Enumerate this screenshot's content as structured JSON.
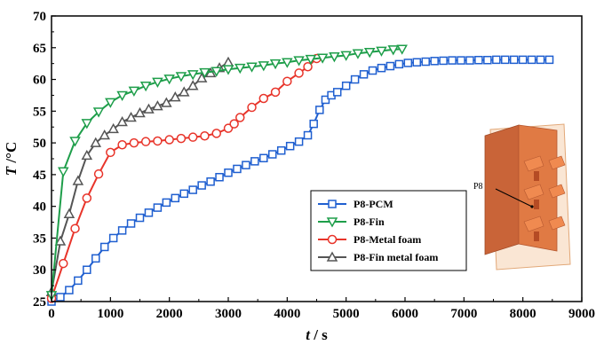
{
  "chart_data": {
    "type": "line",
    "xlabel": {
      "italic": "t",
      "unit": " / s"
    },
    "ylabel": {
      "italic": "T",
      "unit": " /°C"
    },
    "xlim": [
      0,
      9000
    ],
    "ylim": [
      25,
      70
    ],
    "xticks": [
      "0",
      "1000",
      "2000",
      "3000",
      "4000",
      "5000",
      "6000",
      "7000",
      "8000",
      "9000"
    ],
    "yticks": [
      "25",
      "30",
      "35",
      "40",
      "45",
      "50",
      "55",
      "60",
      "65",
      "70"
    ],
    "grid": false,
    "legend_position": "center-right",
    "inset": {
      "label": "P8"
    },
    "series": [
      {
        "name": "P8-PCM",
        "color": "#1f5fd0",
        "marker": "square",
        "points": [
          [
            0,
            25
          ],
          [
            150,
            25.7
          ],
          [
            300,
            26.8
          ],
          [
            450,
            28.3
          ],
          [
            600,
            30
          ],
          [
            750,
            31.8
          ],
          [
            900,
            33.6
          ],
          [
            1050,
            35
          ],
          [
            1200,
            36.2
          ],
          [
            1350,
            37.3
          ],
          [
            1500,
            38.2
          ],
          [
            1650,
            39
          ],
          [
            1800,
            39.8
          ],
          [
            1950,
            40.6
          ],
          [
            2100,
            41.3
          ],
          [
            2250,
            42
          ],
          [
            2400,
            42.6
          ],
          [
            2550,
            43.3
          ],
          [
            2700,
            43.9
          ],
          [
            2850,
            44.6
          ],
          [
            3000,
            45.3
          ],
          [
            3150,
            45.9
          ],
          [
            3300,
            46.5
          ],
          [
            3450,
            47.1
          ],
          [
            3600,
            47.6
          ],
          [
            3750,
            48.2
          ],
          [
            3900,
            48.8
          ],
          [
            4050,
            49.5
          ],
          [
            4200,
            50.2
          ],
          [
            4350,
            51.2
          ],
          [
            4450,
            53
          ],
          [
            4550,
            55.2
          ],
          [
            4650,
            56.8
          ],
          [
            4750,
            57.5
          ],
          [
            4850,
            58
          ],
          [
            5000,
            59
          ],
          [
            5150,
            60
          ],
          [
            5300,
            60.8
          ],
          [
            5450,
            61.4
          ],
          [
            5600,
            61.8
          ],
          [
            5750,
            62.1
          ],
          [
            5900,
            62.4
          ],
          [
            6050,
            62.6
          ],
          [
            6200,
            62.7
          ],
          [
            6350,
            62.8
          ],
          [
            6500,
            62.9
          ],
          [
            6650,
            62.95
          ],
          [
            6800,
            63
          ],
          [
            6950,
            63
          ],
          [
            7100,
            63
          ],
          [
            7250,
            63.05
          ],
          [
            7400,
            63.05
          ],
          [
            7550,
            63.1
          ],
          [
            7700,
            63.1
          ],
          [
            7850,
            63.1
          ],
          [
            8000,
            63.1
          ],
          [
            8150,
            63.1
          ],
          [
            8300,
            63.1
          ],
          [
            8450,
            63.1
          ]
        ]
      },
      {
        "name": "P8-Fin",
        "color": "#1e9e4a",
        "marker": "triangle-down",
        "points": [
          [
            0,
            26
          ],
          [
            200,
            45.5
          ],
          [
            400,
            50.3
          ],
          [
            600,
            53.1
          ],
          [
            800,
            54.9
          ],
          [
            1000,
            56.4
          ],
          [
            1200,
            57.5
          ],
          [
            1400,
            58.2
          ],
          [
            1600,
            59
          ],
          [
            1800,
            59.6
          ],
          [
            2000,
            60.1
          ],
          [
            2200,
            60.5
          ],
          [
            2400,
            60.8
          ],
          [
            2600,
            61.1
          ],
          [
            2800,
            61.3
          ],
          [
            3000,
            61.6
          ],
          [
            3200,
            61.8
          ],
          [
            3400,
            62
          ],
          [
            3600,
            62.2
          ],
          [
            3800,
            62.5
          ],
          [
            4000,
            62.7
          ],
          [
            4200,
            63
          ],
          [
            4400,
            63.2
          ],
          [
            4600,
            63.4
          ],
          [
            4800,
            63.6
          ],
          [
            5000,
            63.8
          ],
          [
            5200,
            64.1
          ],
          [
            5400,
            64.3
          ],
          [
            5600,
            64.5
          ],
          [
            5800,
            64.7
          ],
          [
            5950,
            64.8
          ]
        ]
      },
      {
        "name": "P8-Metal foam",
        "color": "#e8342a",
        "marker": "circle",
        "points": [
          [
            0,
            25.5
          ],
          [
            200,
            31
          ],
          [
            400,
            36.5
          ],
          [
            600,
            41.3
          ],
          [
            800,
            45.1
          ],
          [
            1000,
            48.5
          ],
          [
            1200,
            49.7
          ],
          [
            1400,
            50
          ],
          [
            1600,
            50.2
          ],
          [
            1800,
            50.3
          ],
          [
            2000,
            50.5
          ],
          [
            2200,
            50.7
          ],
          [
            2400,
            50.9
          ],
          [
            2600,
            51.1
          ],
          [
            2800,
            51.5
          ],
          [
            3000,
            52.3
          ],
          [
            3100,
            53
          ],
          [
            3200,
            54
          ],
          [
            3400,
            55.6
          ],
          [
            3600,
            57
          ],
          [
            3800,
            58
          ],
          [
            4000,
            59.7
          ],
          [
            4200,
            61
          ],
          [
            4350,
            62
          ],
          [
            4500,
            63.3
          ]
        ]
      },
      {
        "name": "P8-Fin metal foam",
        "color": "#555555",
        "marker": "triangle-up",
        "points": [
          [
            0,
            26.5
          ],
          [
            150,
            34.5
          ],
          [
            300,
            38.8
          ],
          [
            450,
            44
          ],
          [
            600,
            48
          ],
          [
            750,
            50
          ],
          [
            900,
            51.2
          ],
          [
            1050,
            52.2
          ],
          [
            1200,
            53.3
          ],
          [
            1350,
            54
          ],
          [
            1500,
            54.7
          ],
          [
            1650,
            55.3
          ],
          [
            1800,
            55.8
          ],
          [
            1950,
            56.3
          ],
          [
            2100,
            57.2
          ],
          [
            2250,
            58
          ],
          [
            2400,
            59
          ],
          [
            2550,
            60.2
          ],
          [
            2700,
            61
          ],
          [
            2850,
            61.8
          ],
          [
            3000,
            62.7
          ]
        ]
      }
    ]
  }
}
